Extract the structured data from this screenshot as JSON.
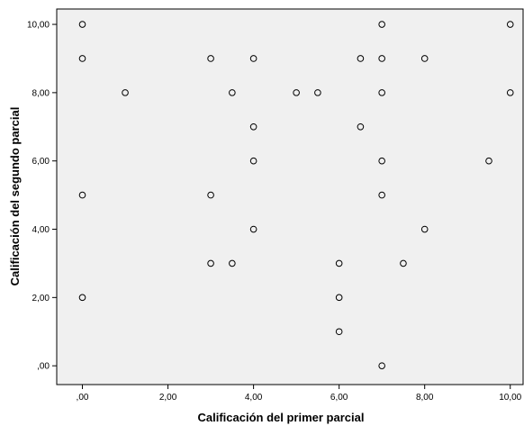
{
  "chart_data": {
    "type": "scatter",
    "title": "",
    "xlabel": "Calificación del primer parcial",
    "ylabel": "Calificación del segundo parcial",
    "xlim": [
      -0.6,
      10.3
    ],
    "ylim": [
      -0.55,
      10.45
    ],
    "x_ticks": [
      0,
      2,
      4,
      6,
      8,
      10
    ],
    "y_ticks": [
      0,
      2,
      4,
      6,
      8,
      10
    ],
    "x_tick_labels": [
      ",00",
      "2,00",
      "4,00",
      "6,00",
      "8,00",
      "10,00"
    ],
    "y_tick_labels": [
      ",00",
      "2,00",
      "4,00",
      "6,00",
      "8,00",
      "10,00"
    ],
    "grid": false,
    "background_color": "#f0f0f0",
    "marker_color": "#000000",
    "points": [
      [
        0,
        10
      ],
      [
        0,
        9
      ],
      [
        0,
        5
      ],
      [
        0,
        2
      ],
      [
        1,
        8
      ],
      [
        3,
        9
      ],
      [
        3,
        5
      ],
      [
        3,
        3
      ],
      [
        3.5,
        8
      ],
      [
        3.5,
        3
      ],
      [
        4,
        9
      ],
      [
        4,
        7
      ],
      [
        4,
        6
      ],
      [
        4,
        4
      ],
      [
        5,
        8
      ],
      [
        5.5,
        8
      ],
      [
        6,
        3
      ],
      [
        6,
        2
      ],
      [
        6,
        1
      ],
      [
        6.5,
        9
      ],
      [
        6.5,
        7
      ],
      [
        7,
        10
      ],
      [
        7,
        9
      ],
      [
        7,
        8
      ],
      [
        7,
        6
      ],
      [
        7,
        5
      ],
      [
        7,
        0
      ],
      [
        7.5,
        3
      ],
      [
        8,
        9
      ],
      [
        8,
        4
      ],
      [
        9.5,
        6
      ],
      [
        10,
        10
      ],
      [
        10,
        8
      ]
    ]
  }
}
